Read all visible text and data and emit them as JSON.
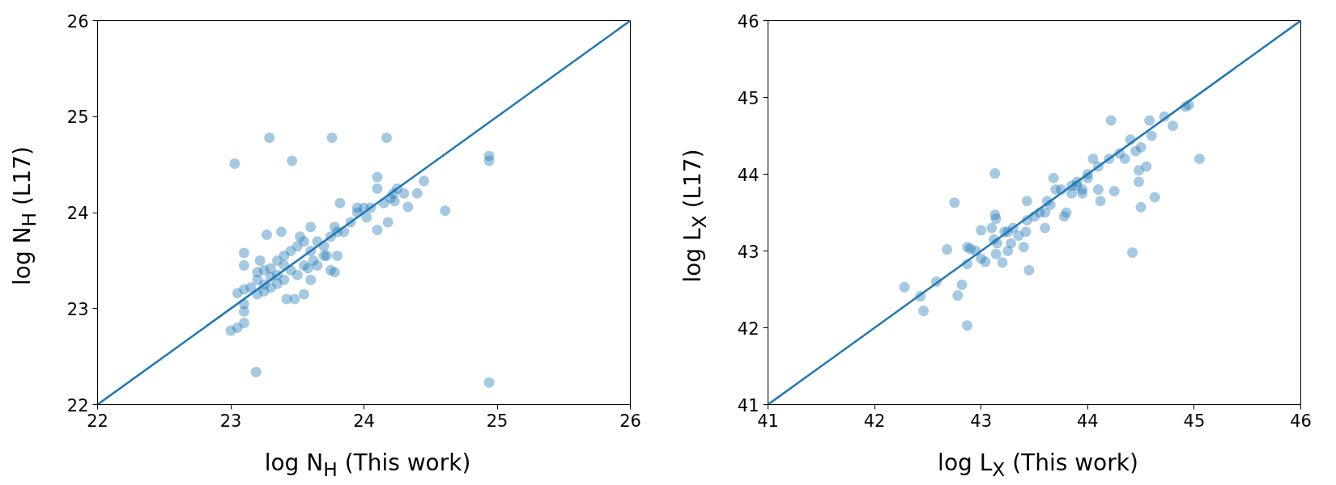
{
  "chart_data": [
    {
      "type": "scatter",
      "xlabel": "log N$_{H}$ (This work)",
      "ylabel": "log N$_{H}$ (L17)",
      "xlim": [
        22,
        26
      ],
      "ylim": [
        22,
        26
      ],
      "xticks": [
        22,
        23,
        24,
        25,
        26
      ],
      "yticks": [
        22,
        23,
        24,
        25,
        26
      ],
      "grid": false,
      "series": [
        {
          "marker": "circle",
          "color": "#1f77b4",
          "x": [
            23.03,
            23.29,
            23.76,
            24.17,
            23.46,
            24.94,
            24.94,
            23.19,
            24.94,
            24.61,
            23.0,
            23.05,
            23.1,
            23.1,
            23.1,
            23.05,
            23.1,
            23.15,
            23.2,
            23.2,
            23.25,
            23.3,
            23.25,
            23.3,
            23.35,
            23.2,
            23.22,
            23.25,
            23.1,
            23.1,
            23.27,
            23.38,
            23.35,
            23.4,
            23.42,
            23.48,
            23.55,
            23.4,
            23.45,
            23.5,
            23.55,
            23.52,
            23.6,
            23.62,
            23.55,
            23.65,
            23.7,
            23.7,
            23.65,
            23.75,
            23.78,
            23.6,
            23.8,
            23.75,
            23.8,
            23.78,
            23.85,
            23.9,
            23.95,
            24.0,
            23.95,
            24.05,
            24.02,
            24.1,
            24.1,
            24.1,
            24.15,
            24.2,
            24.22,
            24.25,
            24.23,
            24.3,
            24.33,
            24.4,
            24.45,
            23.82,
            23.72,
            23.5,
            23.58,
            23.35,
            23.4,
            23.45,
            23.3,
            23.6,
            24.18
          ],
          "values": [
            24.51,
            24.78,
            24.78,
            24.78,
            24.54,
            24.59,
            24.54,
            22.34,
            22.23,
            24.02,
            22.77,
            22.8,
            22.85,
            22.97,
            23.05,
            23.16,
            23.2,
            23.22,
            23.15,
            23.3,
            23.18,
            23.22,
            23.25,
            23.33,
            23.35,
            23.38,
            23.5,
            23.4,
            23.45,
            23.58,
            23.77,
            23.8,
            23.26,
            23.3,
            23.1,
            23.1,
            23.15,
            23.55,
            23.6,
            23.65,
            23.7,
            23.75,
            23.6,
            23.5,
            23.45,
            23.7,
            23.65,
            23.55,
            23.45,
            23.4,
            23.38,
            23.3,
            23.55,
            23.75,
            23.8,
            23.85,
            23.8,
            23.9,
            24.0,
            24.05,
            24.05,
            24.05,
            23.95,
            23.82,
            24.25,
            24.37,
            24.1,
            24.15,
            24.2,
            24.25,
            24.12,
            24.2,
            24.06,
            24.2,
            24.33,
            24.1,
            23.55,
            23.35,
            23.42,
            23.5,
            23.45,
            23.4,
            23.42,
            23.85,
            23.9
          ]
        },
        {
          "type": "line",
          "color": "#1f77b4",
          "x": [
            22,
            26
          ],
          "values": [
            22,
            26
          ]
        }
      ]
    },
    {
      "type": "scatter",
      "xlabel": "log L$_{X}$ (This work)",
      "ylabel": "log L$_{X}$ (L17)",
      "xlim": [
        41,
        46
      ],
      "ylim": [
        41,
        46
      ],
      "xticks": [
        41,
        42,
        43,
        44,
        45,
        46
      ],
      "yticks": [
        41,
        42,
        43,
        44,
        45,
        46
      ],
      "grid": false,
      "series": [
        {
          "marker": "circle",
          "color": "#1f77b4",
          "x": [
            42.28,
            42.43,
            42.46,
            42.58,
            42.68,
            42.75,
            42.78,
            42.82,
            42.87,
            42.87,
            42.9,
            42.87,
            42.95,
            43.0,
            43.04,
            43.0,
            43.1,
            43.12,
            43.15,
            43.13,
            43.14,
            43.14,
            43.13,
            43.2,
            43.22,
            43.25,
            43.28,
            43.3,
            43.35,
            43.4,
            43.42,
            43.45,
            43.43,
            43.43,
            43.5,
            43.55,
            43.6,
            43.62,
            43.65,
            43.7,
            43.68,
            43.75,
            43.78,
            43.8,
            43.85,
            43.9,
            43.95,
            43.95,
            44.0,
            44.05,
            44.1,
            44.1,
            44.12,
            44.2,
            44.22,
            44.25,
            44.3,
            44.35,
            44.4,
            44.42,
            44.45,
            44.48,
            44.48,
            44.5,
            44.55,
            44.58,
            44.6,
            44.63,
            44.72,
            44.8,
            44.92,
            44.95,
            45.05,
            44.5,
            43.9,
            43.6,
            43.85,
            44.0,
            43.25
          ],
          "values": [
            42.53,
            42.41,
            42.22,
            42.6,
            43.02,
            43.63,
            42.42,
            42.56,
            42.03,
            43.05,
            43.03,
            42.83,
            43.0,
            42.9,
            42.86,
            43.27,
            43.3,
            43.15,
            43.1,
            43.47,
            43.42,
            42.96,
            44.01,
            42.85,
            43.25,
            43.0,
            43.1,
            43.3,
            43.2,
            43.05,
            43.25,
            42.75,
            43.4,
            43.65,
            43.45,
            43.5,
            43.3,
            43.65,
            43.6,
            43.8,
            43.95,
            43.8,
            43.45,
            43.5,
            43.85,
            43.9,
            43.8,
            43.75,
            44.0,
            44.2,
            44.1,
            43.8,
            43.65,
            44.2,
            44.7,
            43.78,
            44.27,
            44.2,
            44.45,
            42.98,
            44.3,
            44.05,
            43.9,
            44.35,
            44.1,
            44.7,
            44.5,
            43.7,
            44.75,
            44.63,
            44.88,
            44.9,
            44.2,
            43.57,
            43.85,
            43.5,
            43.75,
            43.95,
            43.25
          ]
        },
        {
          "type": "line",
          "color": "#1f77b4",
          "x": [
            41,
            46
          ],
          "values": [
            41,
            46
          ]
        }
      ]
    }
  ]
}
